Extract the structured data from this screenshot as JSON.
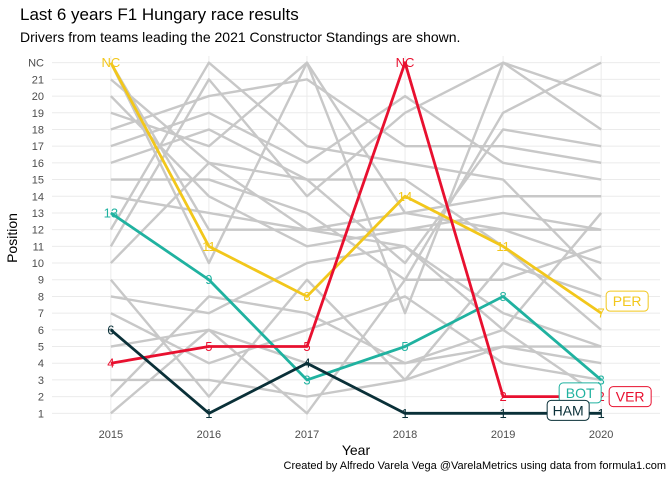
{
  "title": "Last 6 years F1 Hungary race results",
  "subtitle": "Drivers from teams leading the 2021 Constructor Standings are shown.",
  "caption": "Created by Alfredo Varela Vega @VarelaMetrics using data from formula1.com",
  "chart_data": {
    "type": "line",
    "xlabel": "Year",
    "ylabel": "Position",
    "x": [
      2015,
      2016,
      2017,
      2018,
      2019,
      2020
    ],
    "y_categories": [
      "1",
      "2",
      "3",
      "4",
      "5",
      "6",
      "7",
      "8",
      "9",
      "10",
      "11",
      "12",
      "13",
      "14",
      "15",
      "16",
      "17",
      "18",
      "19",
      "20",
      "21",
      "NC"
    ],
    "grid": true,
    "legend": "none",
    "background_series_color": "#c8c8c8",
    "background_series": [
      [
        22,
        10,
        22,
        7,
        22,
        18
      ],
      [
        22,
        12,
        12,
        12,
        12,
        12
      ],
      [
        21,
        16,
        12,
        13,
        14,
        14
      ],
      [
        20,
        14,
        11,
        12,
        13,
        12
      ],
      [
        19,
        17,
        22,
        13,
        12,
        10
      ],
      [
        18,
        20,
        21,
        17,
        17,
        16
      ],
      [
        17,
        19,
        16,
        20,
        16,
        15
      ],
      [
        16,
        18,
        15,
        10,
        18,
        17
      ],
      [
        15,
        15,
        13,
        9,
        9,
        11
      ],
      [
        14,
        13,
        12,
        11,
        6,
        13
      ],
      [
        12,
        22,
        17,
        16,
        15,
        9
      ],
      [
        11,
        21,
        14,
        19,
        22,
        20
      ],
      [
        10,
        16,
        15,
        15,
        11,
        6
      ],
      [
        9,
        2,
        9,
        3,
        10,
        8
      ],
      [
        8,
        7,
        10,
        11,
        7,
        5
      ],
      [
        7,
        4,
        6,
        8,
        4,
        3
      ],
      [
        5,
        6,
        1,
        9,
        19,
        22
      ],
      [
        3,
        3,
        2,
        3,
        5,
        4
      ],
      [
        2,
        8,
        7,
        4,
        6,
        2
      ],
      [
        1,
        6,
        4,
        4,
        5,
        5
      ]
    ],
    "series": [
      {
        "name": "PER",
        "color": "#f2c71b",
        "values": [
          22,
          11,
          8,
          14,
          11,
          7
        ],
        "labels": [
          "NC",
          "11",
          "8",
          "14",
          "11",
          "7"
        ]
      },
      {
        "name": "BOT",
        "color": "#20b2a0",
        "values": [
          13,
          9,
          3,
          5,
          8,
          3
        ],
        "labels": [
          "13",
          "9",
          "3",
          "5",
          "8",
          "3"
        ]
      },
      {
        "name": "VER",
        "color": "#e8102f",
        "values": [
          4,
          5,
          5,
          22,
          2,
          2
        ],
        "labels": [
          "4",
          "5",
          "5",
          "NC",
          "2",
          "2"
        ]
      },
      {
        "name": "HAM",
        "color": "#0a3038",
        "values": [
          6,
          1,
          4,
          1,
          1,
          1
        ],
        "labels": [
          "6",
          "1",
          "4",
          "1",
          "1",
          "1"
        ]
      }
    ]
  }
}
